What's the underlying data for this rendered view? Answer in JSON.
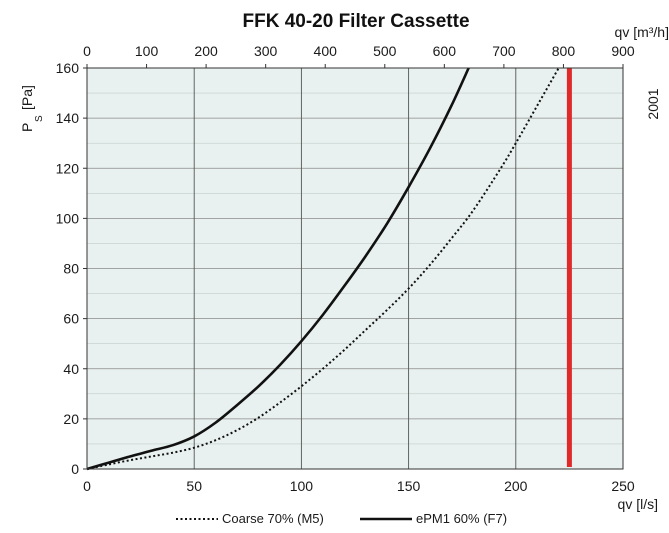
{
  "chart_data": {
    "type": "line",
    "title": "FFK 40-20 Filter Cassette",
    "xlabel": "qv [l/s]",
    "x2label": "qv [m³/h]",
    "ylabel_main": "P",
    "ylabel_sub": "S",
    "ylabel_unit": "[Pa]",
    "side_note": "2001",
    "xlim": [
      0,
      250
    ],
    "x2lim": [
      0,
      900
    ],
    "ylim": [
      0,
      160
    ],
    "x_ticks": [
      "0",
      "50",
      "100",
      "150",
      "200",
      "250"
    ],
    "x2_ticks": [
      "0",
      "100",
      "200",
      "300",
      "400",
      "500",
      "600",
      "700",
      "800",
      "900"
    ],
    "y_ticks": [
      "0",
      "20",
      "40",
      "60",
      "80",
      "100",
      "120",
      "140",
      "160"
    ],
    "grid": true,
    "plot_background": "#e8f1ef",
    "legend_position": "bottom-center",
    "series": [
      {
        "name": "Coarse 70% (M5)",
        "style": "dotted",
        "color": "#111111",
        "x": [
          0,
          10,
          20,
          30,
          40,
          50,
          60,
          70,
          80,
          90,
          100,
          110,
          120,
          130,
          140,
          150,
          160,
          170,
          180,
          193,
          200,
          210,
          220
        ],
        "y": [
          0,
          1.8,
          3.5,
          5,
          6.5,
          8.5,
          11.5,
          15.5,
          20.5,
          26.5,
          33,
          40,
          47.5,
          55.5,
          63.5,
          72,
          81.5,
          92,
          103,
          120,
          130,
          145,
          160
        ]
      },
      {
        "name": "ePM1 60% (F7)",
        "style": "solid",
        "color": "#111111",
        "x": [
          0,
          10,
          20,
          30,
          40,
          50,
          60,
          70,
          80,
          90,
          100,
          110,
          120,
          130,
          140,
          150,
          160,
          170,
          178
        ],
        "y": [
          0,
          2.5,
          5,
          7.3,
          9.5,
          13,
          18.5,
          25.5,
          33,
          41.5,
          51,
          61.5,
          73,
          85,
          98,
          112.5,
          128,
          145,
          160
        ]
      }
    ],
    "marker_line": {
      "x": 225,
      "color": "#e02a2a"
    }
  }
}
